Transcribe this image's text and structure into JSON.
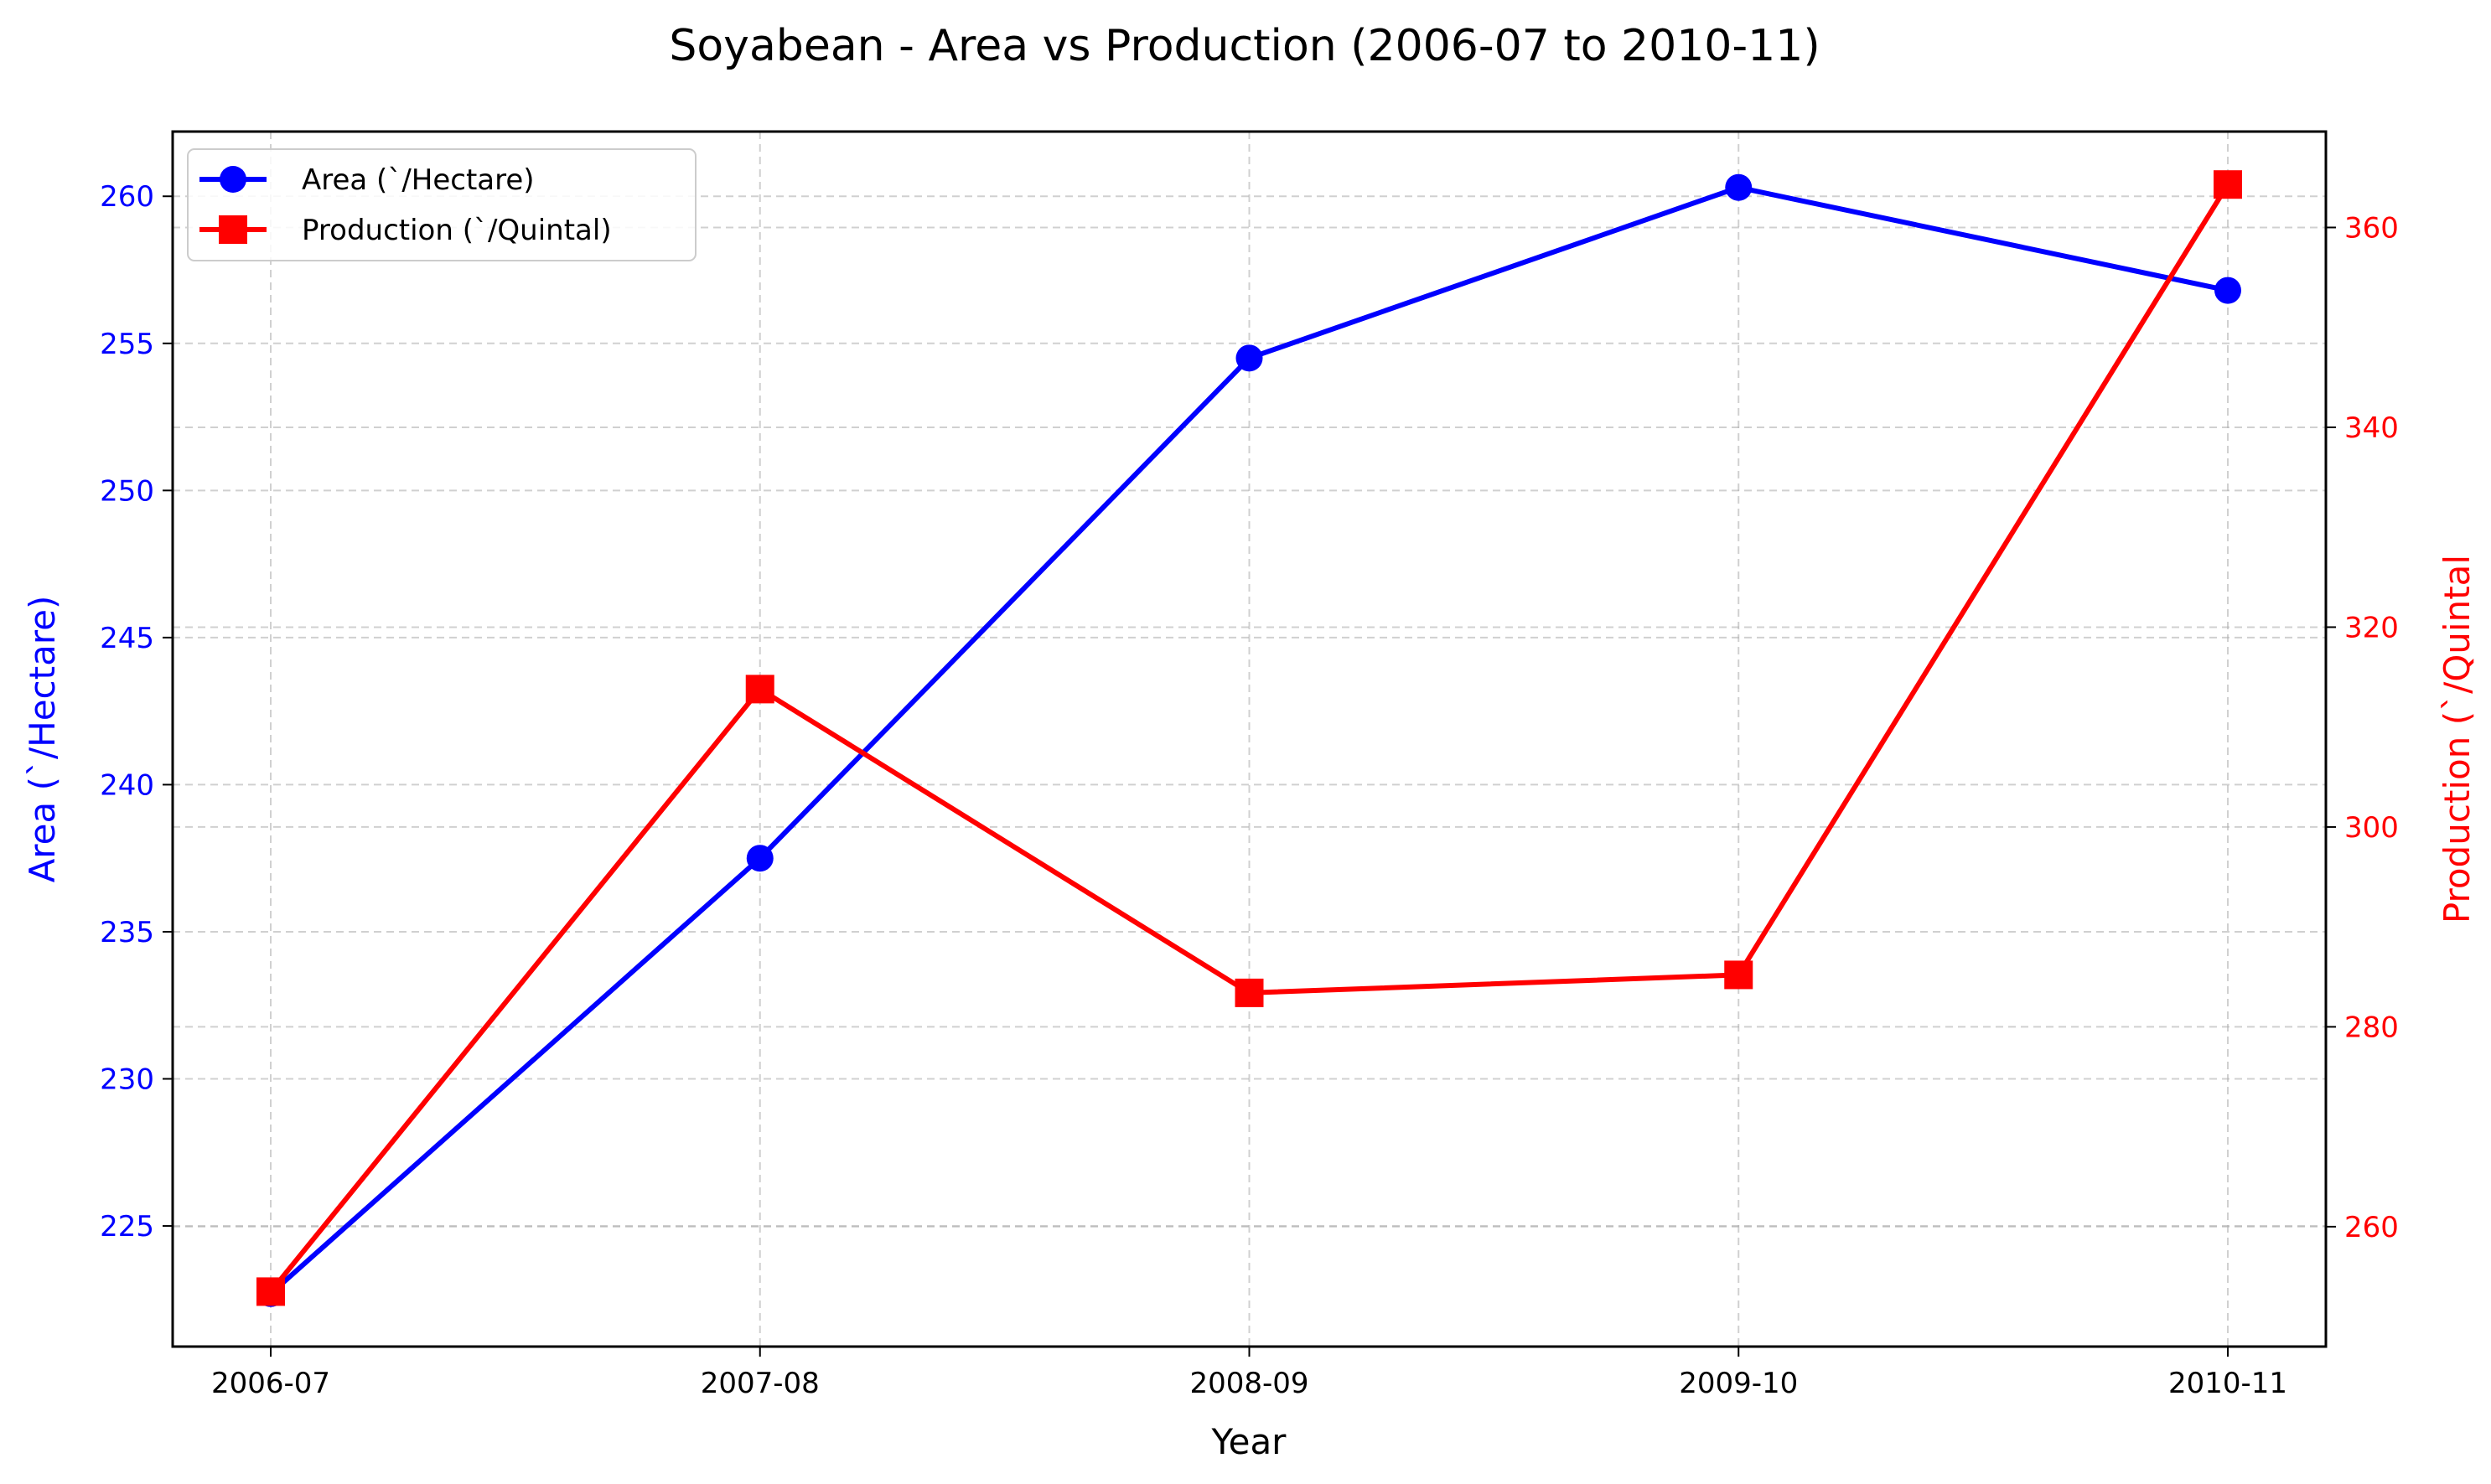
{
  "chart_data": {
    "type": "line",
    "title": "Soyabean - Area vs Production (2006-07 to 2010-11)",
    "xlabel": "Year",
    "ylabel_left": "Area (`/Hectare)",
    "ylabel_right": "Production (`/Quintal",
    "categories": [
      "2006-07",
      "2007-08",
      "2008-09",
      "2009-10",
      "2010-11"
    ],
    "grid": true,
    "legend_position": "top-left",
    "axes": {
      "left": {
        "ylim": [
          220.9,
          262.2
        ],
        "ticks": [
          225,
          230,
          235,
          240,
          245,
          250,
          255,
          260
        ],
        "color": "#0000ff"
      },
      "right": {
        "ylim": [
          248.0,
          369.6
        ],
        "ticks": [
          260,
          280,
          300,
          320,
          340,
          360
        ],
        "color": "#ff0000"
      }
    },
    "series": [
      {
        "name": "Area (`/Hectare)",
        "axis": "left",
        "color": "#0000ff",
        "marker": "circle",
        "values": [
          222.7,
          237.5,
          254.5,
          260.3,
          256.8
        ]
      },
      {
        "name": "Production (`/Quintal)",
        "axis": "right",
        "color": "#ff0000",
        "marker": "square",
        "values": [
          253.5,
          313.8,
          283.4,
          285.2,
          364.3
        ]
      }
    ]
  }
}
